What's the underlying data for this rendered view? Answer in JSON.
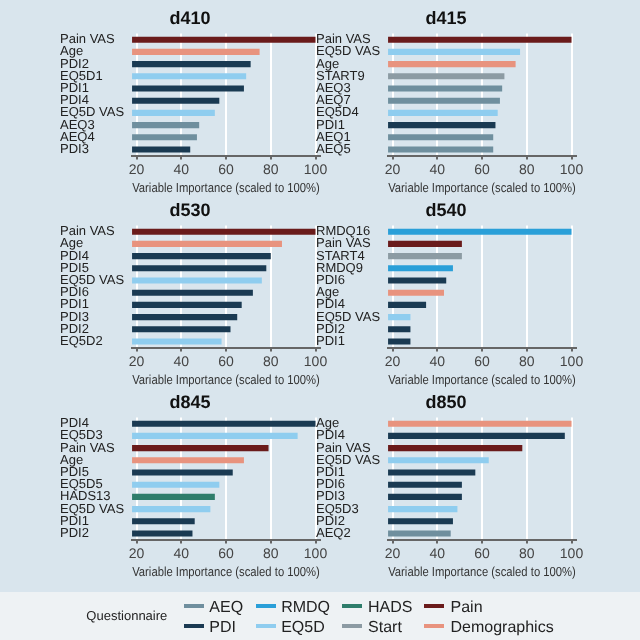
{
  "chart_data": [
    {
      "type": "bar",
      "title": "d410",
      "orientation": "horizontal",
      "stacked": true,
      "xlabel": "Variable Importance (scaled to 100%)",
      "xlim": [
        18,
        102
      ],
      "xticks": [
        20,
        40,
        60,
        80,
        100
      ],
      "grid": "x",
      "legend": "bottom",
      "legend_title": "Questionnaire",
      "categories": [
        "Pain VAS",
        "Age",
        "PDI2",
        "EQ5D1",
        "PDI1",
        "PDI4",
        "EQ5D VAS",
        "AEQ3",
        "AEQ4",
        "PDI3"
      ],
      "series": [
        {
          "name": "AEQ",
          "color": "#6f8f9e",
          "values": [
            null,
            null,
            null,
            null,
            null,
            null,
            null,
            48,
            47,
            null
          ]
        },
        {
          "name": "PDI",
          "color": "#1a3a52",
          "values": [
            null,
            null,
            71,
            null,
            68,
            57,
            null,
            null,
            null,
            44
          ]
        },
        {
          "name": "RMDQ",
          "color": "#2a9fd8",
          "values": [
            null,
            null,
            null,
            null,
            null,
            null,
            null,
            null,
            null,
            null
          ]
        },
        {
          "name": "EQ5D",
          "color": "#8fcdef",
          "values": [
            null,
            null,
            null,
            69,
            null,
            null,
            55,
            null,
            null,
            null
          ]
        },
        {
          "name": "HADS",
          "color": "#2e7d6b",
          "values": [
            null,
            null,
            null,
            null,
            null,
            null,
            null,
            null,
            null,
            null
          ]
        },
        {
          "name": "Start",
          "color": "#8c9ba3",
          "values": [
            null,
            null,
            null,
            null,
            null,
            null,
            null,
            null,
            null,
            null
          ]
        },
        {
          "name": "Pain",
          "color": "#6a1b1b",
          "values": [
            100,
            null,
            null,
            null,
            null,
            null,
            null,
            null,
            null,
            null
          ]
        },
        {
          "name": "Demographics",
          "color": "#e8937e",
          "values": [
            null,
            75,
            null,
            null,
            null,
            null,
            null,
            null,
            null,
            null
          ]
        }
      ]
    },
    {
      "type": "bar",
      "title": "d415",
      "orientation": "horizontal",
      "stacked": true,
      "xlabel": "Variable Importance (scaled to 100%)",
      "xlim": [
        18,
        102
      ],
      "xticks": [
        20,
        40,
        60,
        80,
        100
      ],
      "grid": "x",
      "categories": [
        "Pain VAS",
        "EQ5D VAS",
        "Age",
        "START9",
        "AEQ3",
        "AEQ7",
        "EQ5D4",
        "PDI1",
        "AEQ1",
        "AEQ5"
      ],
      "series": [
        {
          "color": "#6f8f9e",
          "values": [
            null,
            null,
            null,
            null,
            69,
            68,
            null,
            null,
            65,
            65
          ]
        },
        {
          "color": "#1a3a52",
          "values": [
            null,
            null,
            null,
            null,
            null,
            null,
            null,
            66,
            null,
            null
          ]
        },
        {
          "color": "#8fcdef",
          "values": [
            null,
            77,
            null,
            null,
            null,
            null,
            67,
            null,
            null,
            null
          ]
        },
        {
          "color": "#8c9ba3",
          "values": [
            null,
            null,
            null,
            70,
            null,
            null,
            null,
            null,
            null,
            null
          ]
        },
        {
          "color": "#6a1b1b",
          "values": [
            100,
            null,
            null,
            null,
            null,
            null,
            null,
            null,
            null,
            null
          ]
        },
        {
          "color": "#e8937e",
          "values": [
            null,
            null,
            75,
            null,
            null,
            null,
            null,
            null,
            null,
            null
          ]
        }
      ]
    },
    {
      "type": "bar",
      "title": "d530",
      "orientation": "horizontal",
      "stacked": true,
      "xlabel": "Variable Importance (scaled to 100%)",
      "xlim": [
        18,
        102
      ],
      "xticks": [
        20,
        40,
        60,
        80,
        100
      ],
      "grid": "x",
      "categories": [
        "Pain VAS",
        "Age",
        "PDI4",
        "PDI5",
        "EQ5D VAS",
        "PDI6",
        "PDI1",
        "PDI3",
        "PDI2",
        "EQ5D2"
      ],
      "series": [
        {
          "color": "#1a3a52",
          "values": [
            null,
            null,
            80,
            78,
            null,
            72,
            67,
            65,
            62,
            null
          ]
        },
        {
          "color": "#8fcdef",
          "values": [
            null,
            null,
            null,
            null,
            76,
            null,
            null,
            null,
            null,
            58
          ]
        },
        {
          "color": "#6a1b1b",
          "values": [
            100,
            null,
            null,
            null,
            null,
            null,
            null,
            null,
            null,
            null
          ]
        },
        {
          "color": "#e8937e",
          "values": [
            null,
            85,
            null,
            null,
            null,
            null,
            null,
            null,
            null,
            null
          ]
        }
      ]
    },
    {
      "type": "bar",
      "title": "d540",
      "orientation": "horizontal",
      "stacked": true,
      "xlabel": "Variable Importance (scaled to 100%)",
      "xlim": [
        18,
        102
      ],
      "xticks": [
        20,
        40,
        60,
        80,
        100
      ],
      "grid": "x",
      "categories": [
        "RMDQ16",
        "Pain VAS",
        "START4",
        "RMDQ9",
        "PDI6",
        "Age",
        "PDI4",
        "EQ5D VAS",
        "PDI2",
        "PDI1"
      ],
      "series": [
        {
          "color": "#1a3a52",
          "values": [
            null,
            null,
            null,
            null,
            44,
            null,
            35,
            null,
            28,
            28
          ]
        },
        {
          "color": "#2a9fd8",
          "values": [
            100,
            null,
            null,
            47,
            null,
            null,
            null,
            null,
            null,
            null
          ]
        },
        {
          "color": "#8fcdef",
          "values": [
            null,
            null,
            null,
            null,
            null,
            null,
            null,
            28,
            null,
            null
          ]
        },
        {
          "color": "#8c9ba3",
          "values": [
            null,
            null,
            51,
            null,
            null,
            null,
            null,
            null,
            null,
            null
          ]
        },
        {
          "color": "#6a1b1b",
          "values": [
            null,
            51,
            null,
            null,
            null,
            null,
            null,
            null,
            null,
            null
          ]
        },
        {
          "color": "#e8937e",
          "values": [
            null,
            null,
            null,
            null,
            null,
            43,
            null,
            null,
            null,
            null
          ]
        }
      ]
    },
    {
      "type": "bar",
      "title": "d845",
      "orientation": "horizontal",
      "stacked": true,
      "xlabel": "Variable Importance (scaled to 100%)",
      "xlim": [
        18,
        102
      ],
      "xticks": [
        20,
        40,
        60,
        80,
        100
      ],
      "grid": "x",
      "categories": [
        "PDI4",
        "EQ5D3",
        "Pain VAS",
        "Age",
        "PDI5",
        "EQ5D5",
        "HADS13",
        "EQ5D VAS",
        "PDI1",
        "PDI2"
      ],
      "series": [
        {
          "color": "#1a3a52",
          "values": [
            100,
            null,
            null,
            null,
            63,
            null,
            null,
            null,
            46,
            45
          ]
        },
        {
          "color": "#8fcdef",
          "values": [
            null,
            92,
            null,
            null,
            null,
            57,
            null,
            53,
            null,
            null
          ]
        },
        {
          "color": "#2e7d6b",
          "values": [
            null,
            null,
            null,
            null,
            null,
            null,
            55,
            null,
            null,
            null
          ]
        },
        {
          "color": "#6a1b1b",
          "values": [
            null,
            null,
            79,
            null,
            null,
            null,
            null,
            null,
            null,
            null
          ]
        },
        {
          "color": "#e8937e",
          "values": [
            null,
            null,
            null,
            68,
            null,
            null,
            null,
            null,
            null,
            null
          ]
        }
      ]
    },
    {
      "type": "bar",
      "title": "d850",
      "orientation": "horizontal",
      "stacked": true,
      "xlabel": "Variable Importance (scaled to 100%)",
      "xlim": [
        18,
        102
      ],
      "xticks": [
        20,
        40,
        60,
        80,
        100
      ],
      "grid": "x",
      "categories": [
        "Age",
        "PDI4",
        "Pain VAS",
        "EQ5D VAS",
        "PDI1",
        "PDI6",
        "PDI3",
        "EQ5D3",
        "PDI2",
        "AEQ2"
      ],
      "series": [
        {
          "color": "#6f8f9e",
          "values": [
            null,
            null,
            null,
            null,
            null,
            null,
            null,
            null,
            null,
            46
          ]
        },
        {
          "color": "#1a3a52",
          "values": [
            null,
            97,
            null,
            null,
            57,
            51,
            51,
            null,
            47,
            null
          ]
        },
        {
          "color": "#8fcdef",
          "values": [
            null,
            null,
            null,
            63,
            null,
            null,
            null,
            49,
            null,
            null
          ]
        },
        {
          "color": "#6a1b1b",
          "values": [
            null,
            null,
            78,
            null,
            null,
            null,
            null,
            null,
            null,
            null
          ]
        },
        {
          "color": "#e8937e",
          "values": [
            100,
            null,
            null,
            null,
            null,
            null,
            null,
            null,
            null,
            null
          ]
        }
      ]
    }
  ]
}
